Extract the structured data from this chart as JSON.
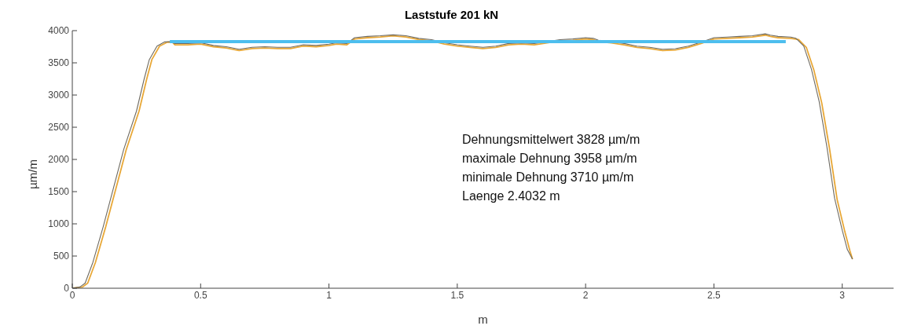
{
  "chart_data": {
    "type": "line",
    "title": "Laststufe 201 kN",
    "xlabel": "m",
    "ylabel": "µm/m",
    "xlim": [
      0,
      3.2
    ],
    "xticks": [
      0,
      0.5,
      1,
      1.5,
      2,
      2.5,
      3
    ],
    "ylim": [
      0,
      4000
    ],
    "yticks": [
      0,
      500,
      1000,
      1500,
      2000,
      2500,
      3000,
      3500,
      4000
    ],
    "annotations": [
      "Dehnungsmittelwert 3828 µm/m",
      "maximale Dehnung 3958 µm/m",
      "minimale Dehnung 3710 µm/m",
      "Laenge 2.4032 m"
    ],
    "series": [
      {
        "color": "#e8a838",
        "x": [
          0,
          0.04,
          0.06,
          0.09,
          0.13,
          0.17,
          0.21,
          0.26,
          0.29,
          0.31,
          0.34,
          0.37,
          0.39,
          0.4,
          0.45,
          0.5,
          0.55,
          0.6,
          0.65,
          0.7,
          0.75,
          0.8,
          0.85,
          0.9,
          0.95,
          1.0,
          1.03,
          1.07,
          1.1,
          1.15,
          1.2,
          1.25,
          1.3,
          1.35,
          1.4,
          1.45,
          1.5,
          1.55,
          1.6,
          1.65,
          1.7,
          1.75,
          1.8,
          1.85,
          1.9,
          1.95,
          2.0,
          2.03,
          2.05,
          2.1,
          2.15,
          2.2,
          2.25,
          2.3,
          2.35,
          2.4,
          2.45,
          2.5,
          2.55,
          2.6,
          2.65,
          2.7,
          2.72,
          2.75,
          2.8,
          2.83,
          2.86,
          2.89,
          2.92,
          2.95,
          2.98,
          3.01,
          3.03,
          3.04
        ],
        "values": [
          0,
          20,
          80,
          400,
          950,
          1550,
          2150,
          2750,
          3250,
          3550,
          3760,
          3820,
          3820,
          3780,
          3780,
          3790,
          3750,
          3730,
          3690,
          3720,
          3730,
          3720,
          3720,
          3760,
          3750,
          3770,
          3790,
          3780,
          3870,
          3890,
          3900,
          3920,
          3900,
          3860,
          3840,
          3790,
          3760,
          3740,
          3720,
          3740,
          3780,
          3790,
          3780,
          3810,
          3840,
          3850,
          3870,
          3860,
          3830,
          3810,
          3780,
          3740,
          3720,
          3690,
          3700,
          3740,
          3800,
          3870,
          3880,
          3890,
          3900,
          3930,
          3910,
          3890,
          3880,
          3860,
          3740,
          3380,
          2880,
          2180,
          1380,
          880,
          580,
          450
        ]
      },
      {
        "color": "#6e6a60",
        "x": [
          0,
          0.03,
          0.05,
          0.08,
          0.12,
          0.16,
          0.2,
          0.25,
          0.28,
          0.3,
          0.33,
          0.36,
          0.38,
          0.4,
          0.45,
          0.5,
          0.55,
          0.6,
          0.65,
          0.7,
          0.75,
          0.8,
          0.85,
          0.9,
          0.95,
          1.0,
          1.03,
          1.07,
          1.1,
          1.15,
          1.2,
          1.25,
          1.3,
          1.35,
          1.4,
          1.45,
          1.5,
          1.55,
          1.6,
          1.65,
          1.7,
          1.75,
          1.8,
          1.85,
          1.9,
          1.95,
          2.0,
          2.03,
          2.05,
          2.1,
          2.15,
          2.2,
          2.25,
          2.3,
          2.35,
          2.4,
          2.45,
          2.5,
          2.55,
          2.6,
          2.65,
          2.7,
          2.72,
          2.75,
          2.8,
          2.82,
          2.85,
          2.88,
          2.91,
          2.94,
          2.97,
          3.0,
          3.02,
          3.04
        ],
        "values": [
          0,
          20,
          80,
          400,
          950,
          1550,
          2150,
          2750,
          3250,
          3550,
          3760,
          3825,
          3830,
          3800,
          3800,
          3810,
          3770,
          3750,
          3710,
          3740,
          3750,
          3740,
          3740,
          3780,
          3770,
          3790,
          3810,
          3800,
          3890,
          3910,
          3920,
          3935,
          3920,
          3880,
          3860,
          3810,
          3780,
          3760,
          3740,
          3760,
          3800,
          3810,
          3800,
          3830,
          3860,
          3870,
          3890,
          3880,
          3850,
          3830,
          3800,
          3760,
          3740,
          3710,
          3720,
          3760,
          3820,
          3890,
          3900,
          3910,
          3920,
          3950,
          3930,
          3910,
          3900,
          3880,
          3760,
          3400,
          2900,
          2200,
          1400,
          900,
          600,
          450
        ]
      },
      {
        "color": "#4dbeee",
        "x": [
          0.38,
          2.78
        ],
        "values": [
          3828,
          3828
        ]
      }
    ]
  }
}
